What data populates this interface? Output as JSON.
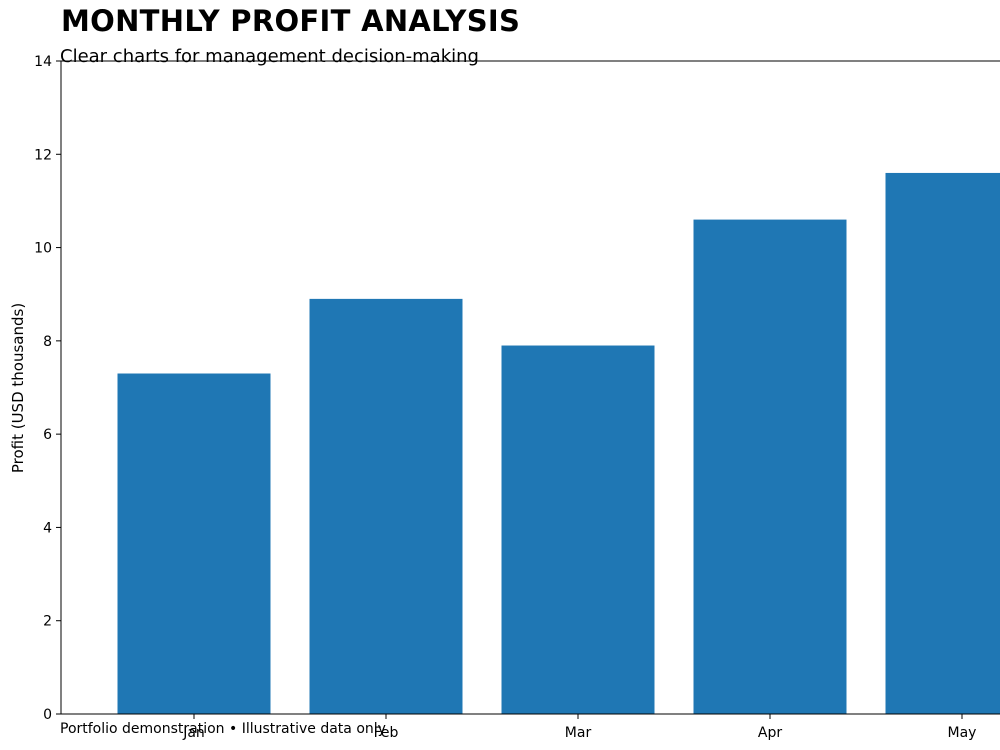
{
  "header": {
    "title": "MONTHLY PROFIT ANALYSIS",
    "subtitle": "Clear charts for management decision-making"
  },
  "footnote": "Portfolio demonstration • Illustrative data only",
  "chart_data": {
    "type": "bar",
    "categories": [
      "Jan",
      "Feb",
      "Mar",
      "Apr",
      "May"
    ],
    "values": [
      7.3,
      8.9,
      7.9,
      10.6,
      11.6
    ],
    "ylabel": "Profit (USD thousands)",
    "xlabel": "",
    "ylim": [
      0,
      14
    ],
    "yticks": [
      0,
      2,
      4,
      6,
      8,
      10,
      12,
      14
    ],
    "grid": false,
    "bar_color": "#1f77b4"
  }
}
